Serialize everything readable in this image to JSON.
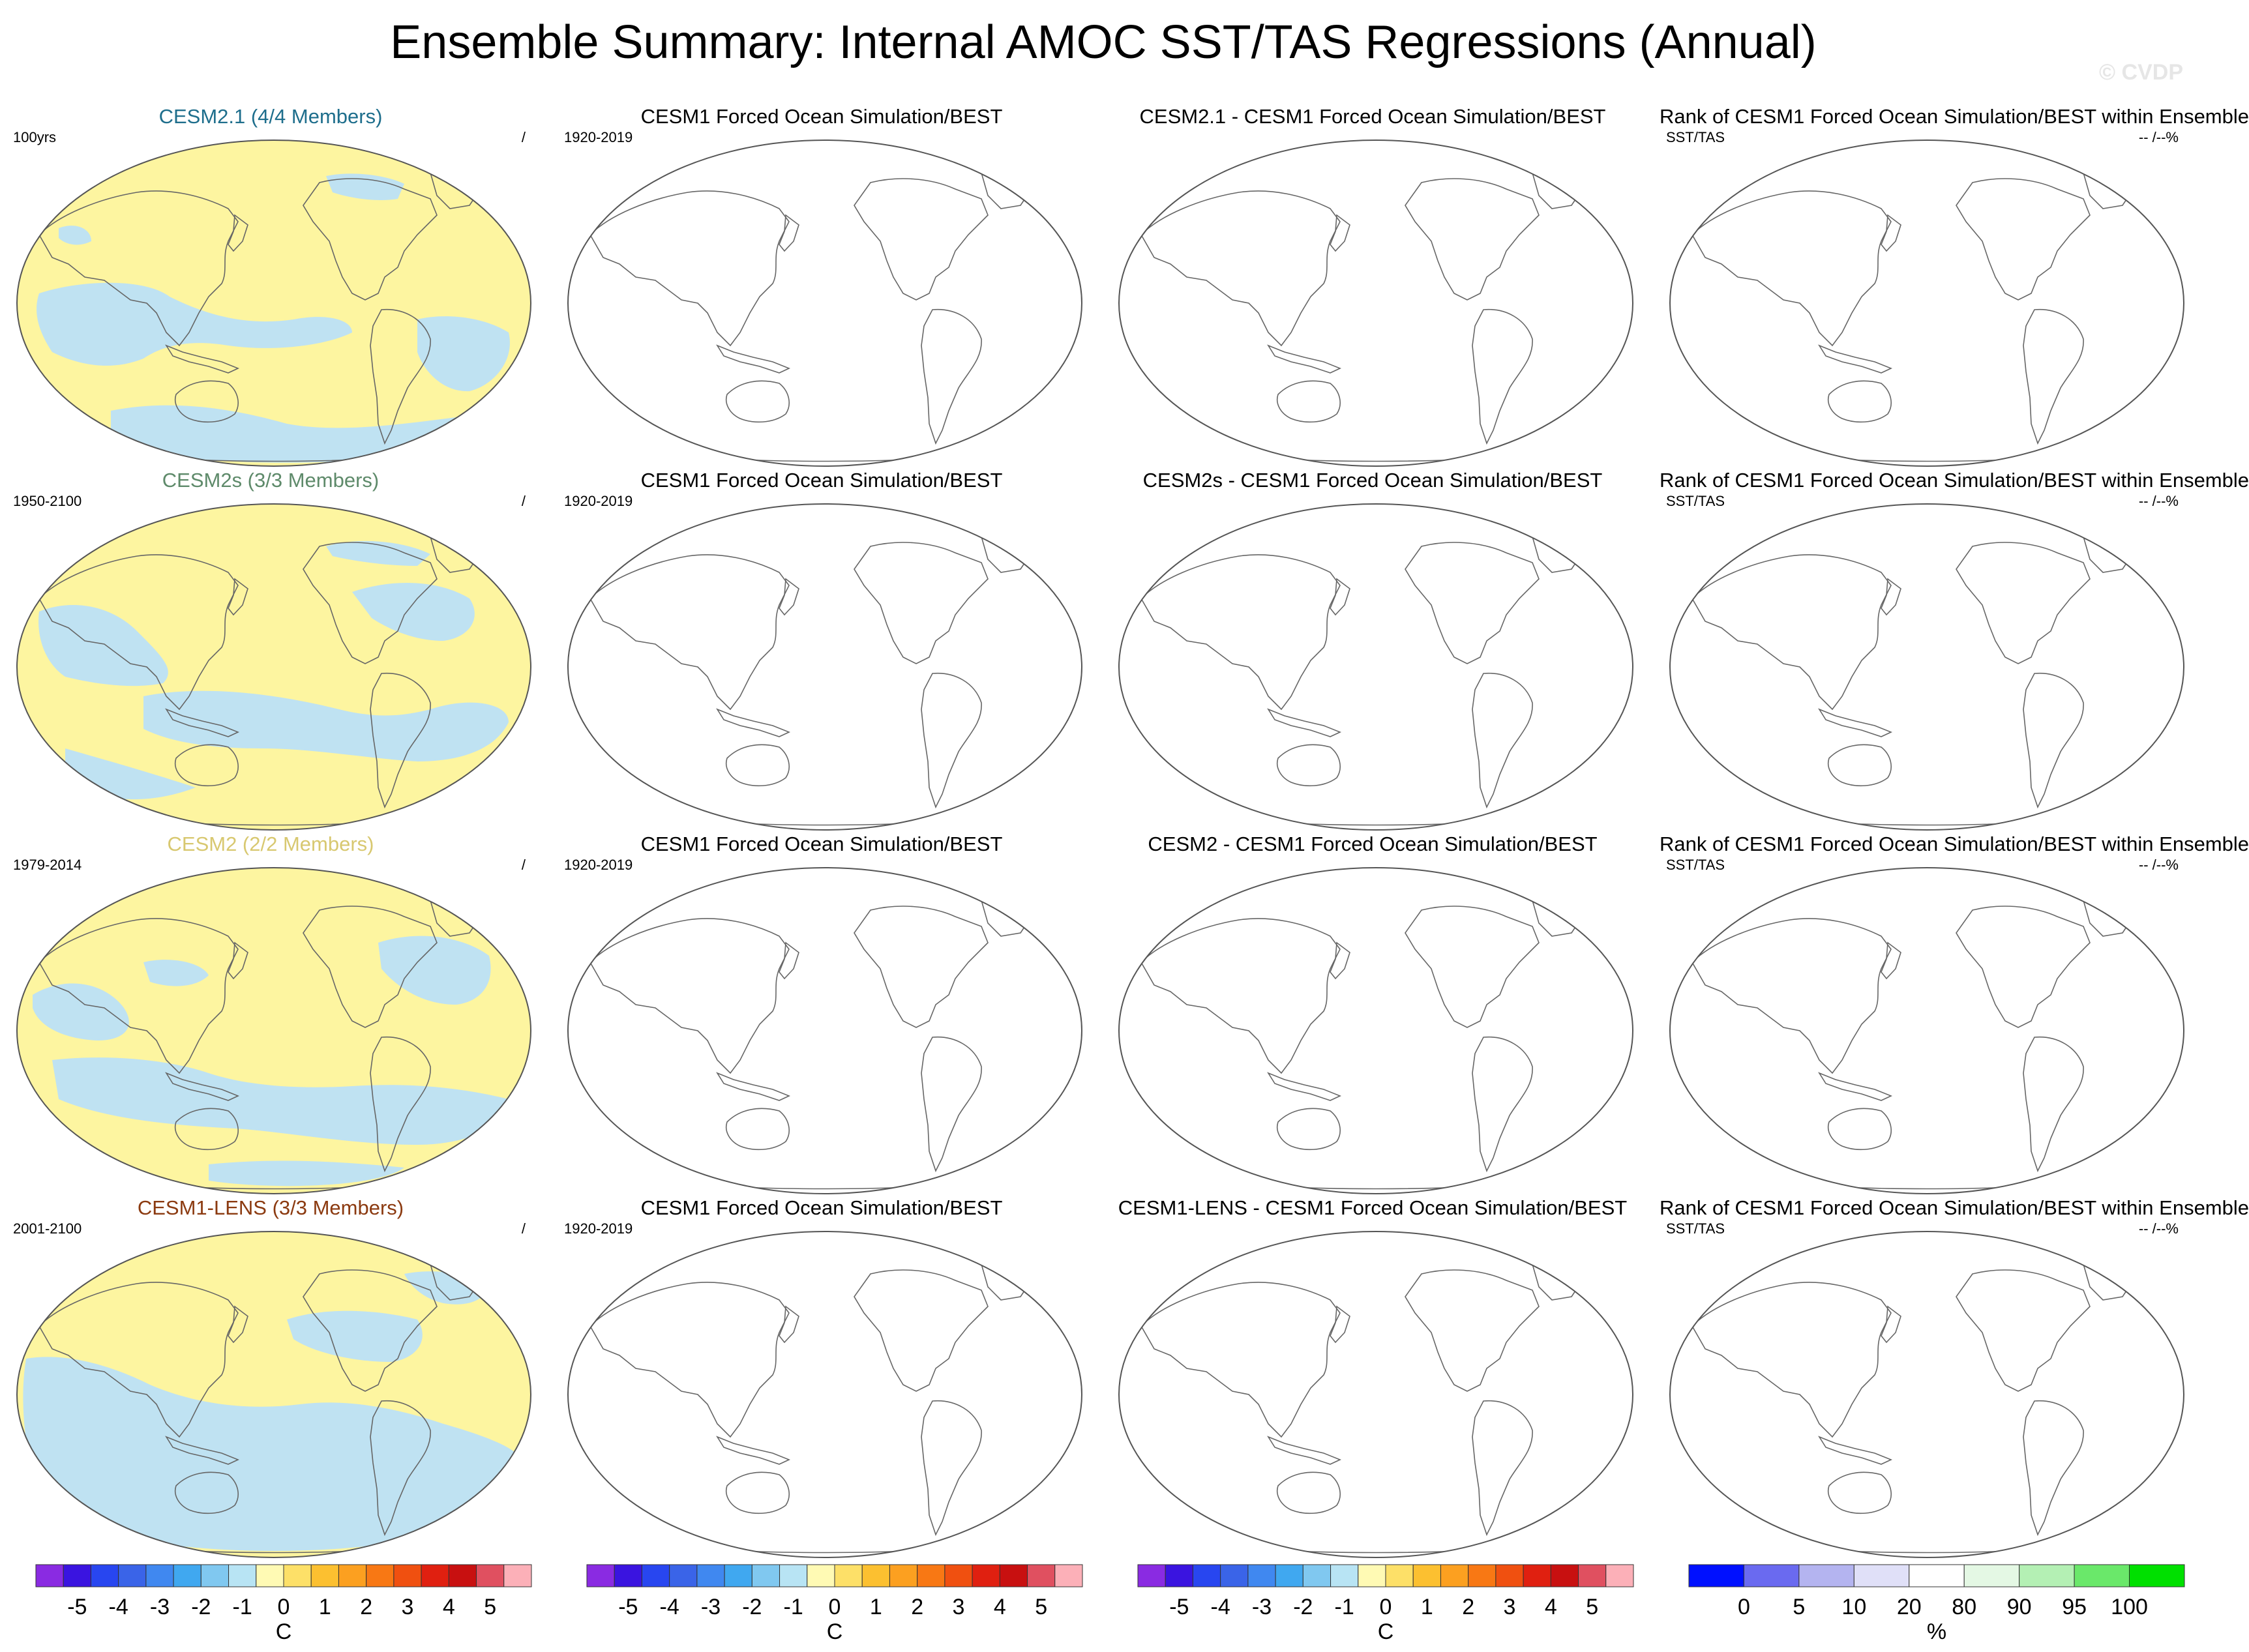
{
  "title": "Ensemble Summary: Internal AMOC SST/TAS Regressions (Annual)",
  "watermark": "© CVDP",
  "rows": [
    {
      "ensemble_title": "CESM2.1 (4/4 Members)",
      "ensemble_color": "#1e6e8c",
      "period": "100yrs",
      "ratio": "/",
      "obs_title": "CESM1 Forced Ocean Simulation/BEST",
      "obs_period": "1920-2019",
      "diff_title": "CESM2.1 - CESM1 Forced Ocean Simulation/BEST",
      "rank_title": "Rank of CESM1 Forced Ocean Simulation/BEST within Ensemble",
      "rank_var": "SST/TAS",
      "rank_pct": "-- /--%"
    },
    {
      "ensemble_title": "CESM2s (3/3 Members)",
      "ensemble_color": "#5e8a6a",
      "period": "1950-2100",
      "ratio": "/",
      "obs_title": "CESM1 Forced Ocean Simulation/BEST",
      "obs_period": "1920-2019",
      "diff_title": "CESM2s - CESM1 Forced Ocean Simulation/BEST",
      "rank_title": "Rank of CESM1 Forced Ocean Simulation/BEST within Ensemble",
      "rank_var": "SST/TAS",
      "rank_pct": "-- /--%"
    },
    {
      "ensemble_title": "CESM2 (2/2 Members)",
      "ensemble_color": "#d8c870",
      "period": "1979-2014",
      "ratio": "/",
      "obs_title": "CESM1 Forced Ocean Simulation/BEST",
      "obs_period": "1920-2019",
      "diff_title": "CESM2 - CESM1 Forced Ocean Simulation/BEST",
      "rank_title": "Rank of CESM1 Forced Ocean Simulation/BEST within Ensemble",
      "rank_var": "SST/TAS",
      "rank_pct": "-- /--%"
    },
    {
      "ensemble_title": "CESM1-LENS (3/3 Members)",
      "ensemble_color": "#8b3a10",
      "period": "2001-2100",
      "ratio": "/",
      "obs_title": "CESM1 Forced Ocean Simulation/BEST",
      "obs_period": "1920-2019",
      "diff_title": "CESM1-LENS - CESM1 Forced Ocean Simulation/BEST",
      "rank_title": "Rank of CESM1 Forced Ocean Simulation/BEST within Ensemble",
      "rank_var": "SST/TAS",
      "rank_pct": "-- /--%"
    }
  ],
  "field_colors": {
    "positive": "#fdf5a0",
    "negative": "#bfe2f2",
    "coast": "#666666"
  },
  "colorbars": {
    "regression": {
      "units": "C",
      "labels": [
        "-5",
        "-4",
        "-3",
        "-2",
        "-1",
        "0",
        "1",
        "2",
        "3",
        "4",
        "5"
      ],
      "colors": [
        "#8a2be2",
        "#3a14e0",
        "#2846f0",
        "#3a64e8",
        "#4088f0",
        "#40a8f0",
        "#80c8f0",
        "#b8e4f4",
        "#fffab4",
        "#fde068",
        "#fcc030",
        "#fca020",
        "#f87814",
        "#f05010",
        "#e02010",
        "#c81010",
        "#e05060",
        "#fcb0b8"
      ]
    },
    "rank": {
      "units": "%",
      "labels": [
        "0",
        "5",
        "10",
        "20",
        "80",
        "90",
        "95",
        "100"
      ],
      "colors": [
        "#0010ff",
        "#6a6af0",
        "#b4b4f0",
        "#e0e0f8",
        "#ffffff",
        "#e4f8e4",
        "#b4f0b4",
        "#6ae86a",
        "#00e000"
      ]
    }
  }
}
